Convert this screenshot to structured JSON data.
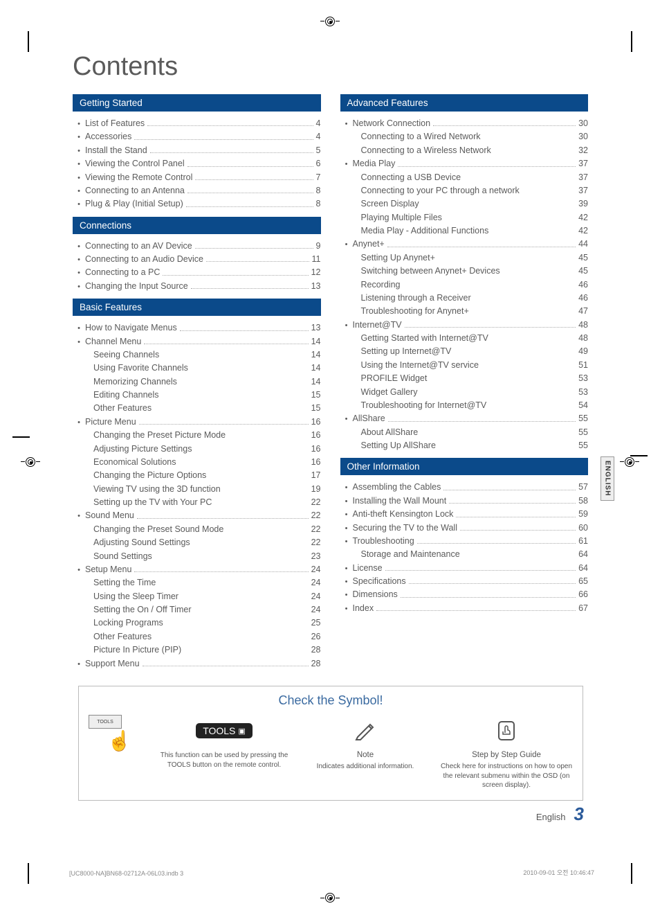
{
  "title": "Contents",
  "lang_tab": "ENGLISH",
  "sections_left": [
    {
      "heading": "Getting Started",
      "items": [
        {
          "bullet": true,
          "label": "List of Features",
          "page": "4"
        },
        {
          "bullet": true,
          "label": "Accessories",
          "page": "4"
        },
        {
          "bullet": true,
          "label": "Install the Stand",
          "page": "5"
        },
        {
          "bullet": true,
          "label": "Viewing the Control Panel",
          "page": "6"
        },
        {
          "bullet": true,
          "label": "Viewing the Remote Control",
          "page": "7"
        },
        {
          "bullet": true,
          "label": "Connecting to an Antenna",
          "page": "8"
        },
        {
          "bullet": true,
          "label": "Plug & Play (Initial Setup)",
          "page": "8"
        }
      ]
    },
    {
      "heading": "Connections",
      "items": [
        {
          "bullet": true,
          "label": "Connecting to an AV Device",
          "page": "9"
        },
        {
          "bullet": true,
          "label": "Connecting to an Audio Device",
          "page": "11"
        },
        {
          "bullet": true,
          "label": "Connecting to a PC",
          "page": "12"
        },
        {
          "bullet": true,
          "label": "Changing the Input Source",
          "page": "13"
        }
      ]
    },
    {
      "heading": "Basic Features",
      "items": [
        {
          "bullet": true,
          "label": "How to Navigate Menus",
          "page": "13"
        },
        {
          "bullet": true,
          "label": "Channel Menu",
          "page": "14",
          "sub": [
            {
              "label": "Seeing Channels",
              "page": "14"
            },
            {
              "label": "Using Favorite Channels",
              "page": "14"
            },
            {
              "label": "Memorizing Channels",
              "page": "14"
            },
            {
              "label": "Editing Channels",
              "page": "15"
            },
            {
              "label": "Other Features",
              "page": "15"
            }
          ]
        },
        {
          "bullet": true,
          "label": "Picture Menu",
          "page": "16",
          "sub": [
            {
              "label": "Changing the Preset Picture Mode",
              "page": "16"
            },
            {
              "label": "Adjusting Picture Settings",
              "page": "16"
            },
            {
              "label": "Economical Solutions",
              "page": "16"
            },
            {
              "label": "Changing the Picture Options",
              "page": "17"
            },
            {
              "label": "Viewing TV using the 3D function",
              "page": "19"
            },
            {
              "label": "Setting up the TV with Your PC",
              "page": "22"
            }
          ]
        },
        {
          "bullet": true,
          "label": "Sound Menu",
          "page": "22",
          "sub": [
            {
              "label": "Changing the Preset Sound Mode",
              "page": "22"
            },
            {
              "label": "Adjusting Sound Settings",
              "page": "22"
            },
            {
              "label": "Sound Settings",
              "page": "23"
            }
          ]
        },
        {
          "bullet": true,
          "label": "Setup Menu",
          "page": "24",
          "sub": [
            {
              "label": "Setting the Time",
              "page": "24"
            },
            {
              "label": "Using the Sleep Timer",
              "page": "24"
            },
            {
              "label": "Setting the On / Off Timer",
              "page": "24"
            },
            {
              "label": "Locking Programs",
              "page": "25"
            },
            {
              "label": "Other Features",
              "page": "26"
            },
            {
              "label": "Picture In Picture (PIP)",
              "page": "28"
            }
          ]
        },
        {
          "bullet": true,
          "label": "Support Menu",
          "page": "28"
        }
      ]
    }
  ],
  "sections_right": [
    {
      "heading": "Advanced Features",
      "items": [
        {
          "bullet": true,
          "label": "Network Connection",
          "page": "30",
          "sub": [
            {
              "label": "Connecting to a Wired Network",
              "page": "30"
            },
            {
              "label": "Connecting to a Wireless Network",
              "page": "32"
            }
          ]
        },
        {
          "bullet": true,
          "label": "Media Play",
          "page": "37",
          "sub": [
            {
              "label": "Connecting a USB Device",
              "page": "37"
            },
            {
              "label": "Connecting to your PC through a network",
              "page": "37"
            },
            {
              "label": "Screen Display",
              "page": "39"
            },
            {
              "label": "Playing Multiple Files",
              "page": "42"
            },
            {
              "label": "Media Play - Additional Functions",
              "page": "42"
            }
          ]
        },
        {
          "bullet": true,
          "label": "Anynet+",
          "page": "44",
          "sub": [
            {
              "label": "Setting Up Anynet+",
              "page": "45"
            },
            {
              "label": "Switching between Anynet+ Devices",
              "page": "45"
            },
            {
              "label": "Recording",
              "page": "46"
            },
            {
              "label": "Listening through a Receiver",
              "page": "46"
            },
            {
              "label": "Troubleshooting for Anynet+",
              "page": "47"
            }
          ]
        },
        {
          "bullet": true,
          "label": "Internet@TV",
          "page": "48",
          "sub": [
            {
              "label": "Getting Started with Internet@TV",
              "page": "48"
            },
            {
              "label": "Setting up Internet@TV",
              "page": "49"
            },
            {
              "label": "Using the Internet@TV service",
              "page": "51"
            },
            {
              "label": "PROFILE Widget",
              "page": "53"
            },
            {
              "label": "Widget Gallery",
              "page": "53"
            },
            {
              "label": "Troubleshooting for Internet@TV",
              "page": "54"
            }
          ]
        },
        {
          "bullet": true,
          "label": "AllShare",
          "page": "55",
          "sub": [
            {
              "label": "About AllShare",
              "page": "55"
            },
            {
              "label": "Setting Up AllShare",
              "page": "55"
            }
          ]
        }
      ]
    },
    {
      "heading": "Other Information",
      "items": [
        {
          "bullet": true,
          "label": "Assembling the Cables",
          "page": "57"
        },
        {
          "bullet": true,
          "label": "Installing the Wall Mount",
          "page": "58"
        },
        {
          "bullet": true,
          "label": "Anti-theft Kensington Lock",
          "page": "59"
        },
        {
          "bullet": true,
          "label": "Securing the TV to the Wall",
          "page": "60"
        },
        {
          "bullet": true,
          "label": "Troubleshooting",
          "page": "61",
          "sub": [
            {
              "label": "Storage and Maintenance",
              "page": "64"
            }
          ]
        },
        {
          "bullet": true,
          "label": "License",
          "page": "64"
        },
        {
          "bullet": true,
          "label": "Specifications",
          "page": "65"
        },
        {
          "bullet": true,
          "label": "Dimensions",
          "page": "66"
        },
        {
          "bullet": true,
          "label": "Index",
          "page": "67"
        }
      ]
    }
  ],
  "check_symbol": {
    "title": "Check the Symbol!",
    "cells": [
      {
        "icon": "tools-button",
        "icon_label": "TOOLS",
        "subtitle": "",
        "desc": "This function can be used by pressing the TOOLS button on the remote control."
      },
      {
        "icon": "note-pencil",
        "subtitle": "Note",
        "desc": "Indicates additional information."
      },
      {
        "icon": "step-hand",
        "subtitle": "Step by Step Guide",
        "desc": "Check here for instructions on how to open the relevant submenu within the OSD (on screen display)."
      }
    ]
  },
  "footer": {
    "lang": "English",
    "page_num": "3",
    "imprint_left": "[UC8000-NA]BN68-02712A-06L03.indb   3",
    "imprint_right": "2010-09-01   오전 10:46:47"
  },
  "colors": {
    "heading_bg": "#0b4a8a",
    "title_color": "#5a5a5a",
    "text_color": "#5a5a5a",
    "accent_blue": "#3a6aa0",
    "page_num_color": "#2a5a9a"
  }
}
